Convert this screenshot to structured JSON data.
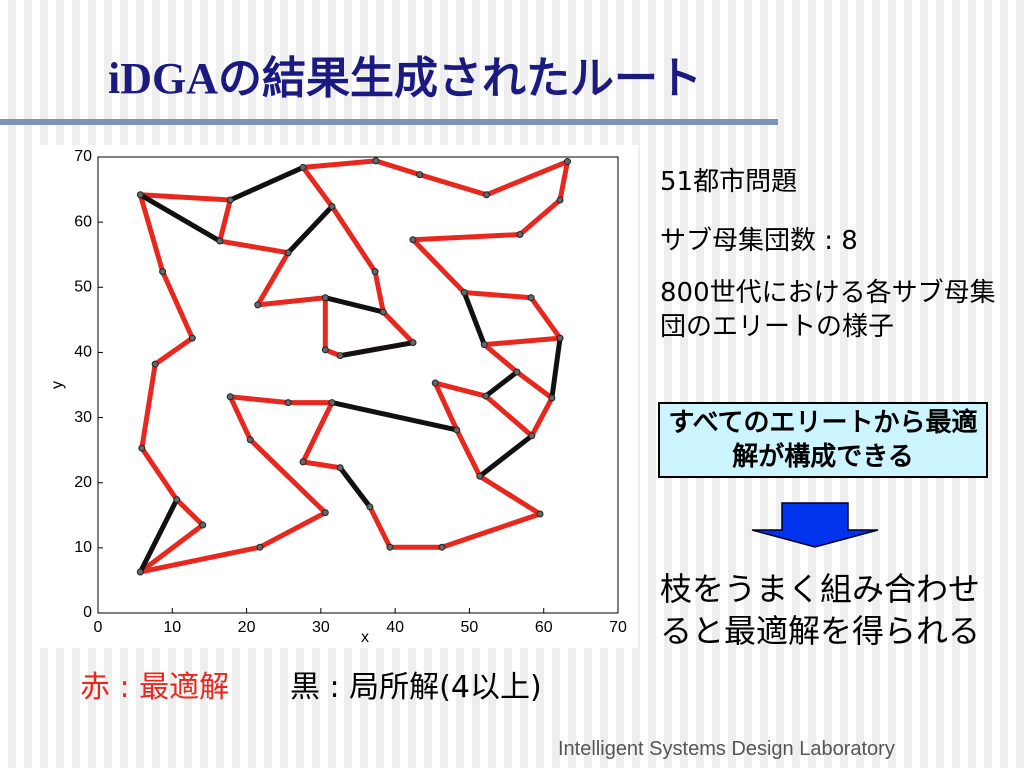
{
  "title": "iDGAの結果生成されたルート",
  "notes": [
    "51都市問題",
    "サブ母集団数 : 8",
    "800世代における各サブ母集団のエリートの様子"
  ],
  "box": "すべてのエリートから最適解が構成できる",
  "conclusion": "枝をうまく組み合わせると最適解を得られる",
  "legend": [
    "赤 : 最適解",
    "黒 : 局所解(4以上)"
  ],
  "footer": "Intelligent Systems Design Laboratory",
  "chart_data": {
    "type": "route",
    "xlabel": "x",
    "ylabel": "y",
    "xlim": [
      0,
      70
    ],
    "ylim": [
      0,
      70
    ],
    "xticks": [
      0,
      10,
      20,
      30,
      40,
      50,
      60,
      70
    ],
    "yticks": [
      0,
      10,
      20,
      30,
      40,
      50,
      60,
      70
    ],
    "series": [
      {
        "color": "#e8281e",
        "x": [
          5.7,
          14.1,
          10.6,
          5.9,
          7.7,
          12.7,
          8.7,
          5.7,
          17.8,
          16.4,
          25.6,
          21.5,
          30.6,
          30.6,
          32.6,
          42.4,
          38.4,
          37.3,
          31.5,
          27.6,
          37.4,
          43.3,
          52.3,
          63.2,
          62.2,
          56.8,
          42.4,
          49.3,
          58.3,
          62.2,
          52.0,
          56.4,
          61.1,
          58.4,
          52.2,
          45.4,
          48.3,
          51.4,
          59.5,
          46.3,
          39.3,
          36.6,
          32.6,
          27.6,
          31.5,
          25.6,
          17.8,
          20.5,
          30.6,
          21.8,
          5.7
        ],
        "y": [
          6.3,
          13.5,
          17.4,
          25.3,
          38.2,
          42.2,
          52.4,
          64.2,
          63.4,
          57.1,
          55.3,
          47.3,
          48.4,
          40.4,
          39.5,
          41.5,
          46.2,
          52.4,
          62.4,
          68.4,
          69.4,
          67.3,
          64.2,
          69.3,
          63.4,
          58.1,
          57.3,
          49.2,
          48.4,
          42.2,
          41.2,
          37.0,
          33.0,
          27.2,
          33.3,
          35.3,
          28.1,
          21.0,
          15.2,
          10.1,
          10.1,
          16.3,
          22.3,
          23.2,
          32.3,
          32.3,
          33.2,
          26.6,
          15.4,
          10.1,
          6.3
        ]
      },
      {
        "color": "#111111",
        "x": [
          5.7,
          10.6,
          null,
          17.8,
          27.6,
          null,
          25.6,
          31.5,
          null,
          5.7,
          16.4,
          null,
          30.6,
          38.4,
          null,
          32.6,
          42.4,
          null,
          31.5,
          48.3,
          null,
          49.3,
          52.0,
          null,
          52.2,
          56.4,
          null,
          62.2,
          61.1,
          null,
          51.4,
          58.4,
          null,
          32.6,
          36.6
        ],
        "y": [
          6.3,
          17.4,
          null,
          63.4,
          68.4,
          null,
          55.3,
          62.4,
          null,
          64.2,
          57.1,
          null,
          48.4,
          46.2,
          null,
          39.5,
          41.5,
          null,
          32.3,
          28.1,
          null,
          49.2,
          41.2,
          null,
          33.3,
          37.0,
          null,
          42.2,
          33.0,
          null,
          21.0,
          27.2,
          null,
          22.3,
          16.3
        ]
      }
    ]
  }
}
